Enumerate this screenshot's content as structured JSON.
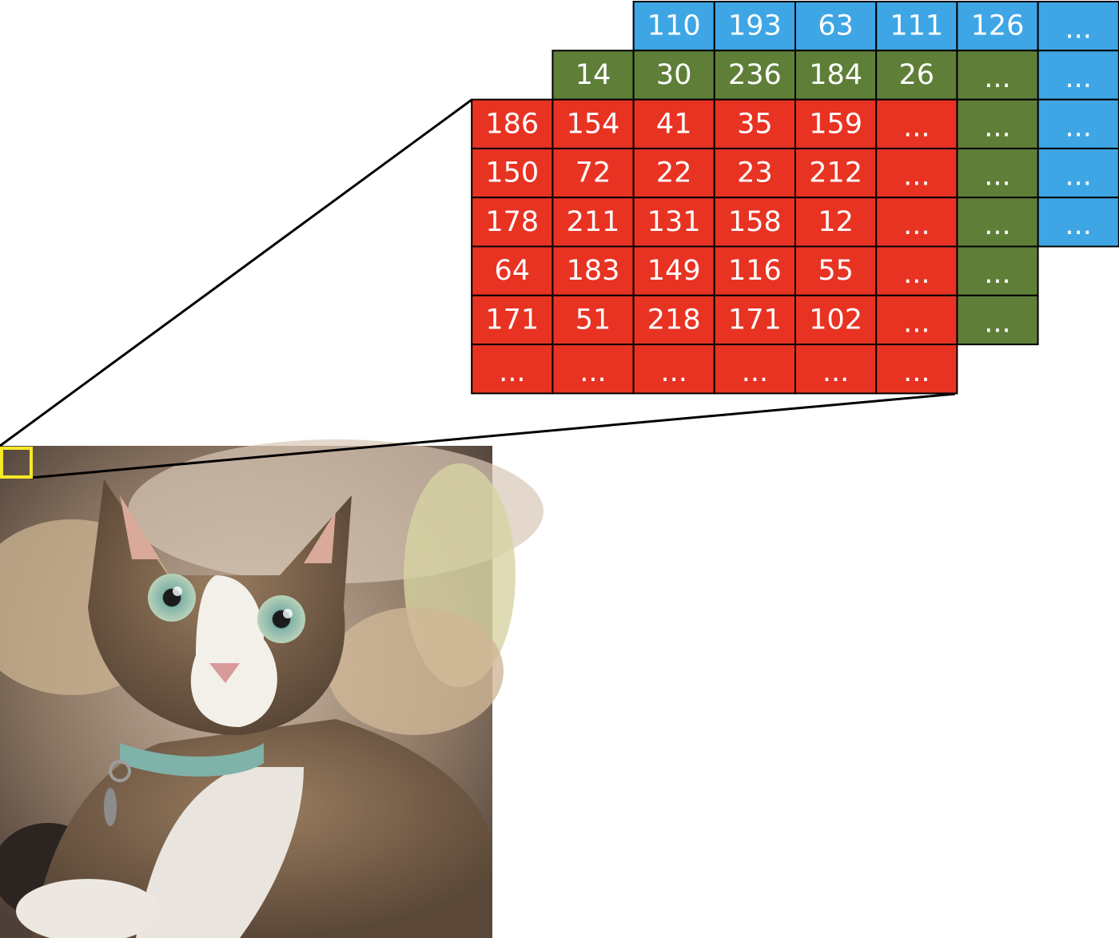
{
  "colors": {
    "red_channel": "#E83323",
    "green_channel": "#5F7F39",
    "blue_channel": "#3FA6E5",
    "highlight_box": "#F5E829",
    "cell_text": "#FFFFFF",
    "connector": "#000000"
  },
  "image": {
    "subject": "tabby cat with blue collar, photo",
    "highlight": "small yellow square in top-left corner of photo"
  },
  "channels": {
    "blue": {
      "rows": [
        [
          "110",
          "193",
          "63",
          "111",
          "126",
          "..."
        ],
        [
          "...",
          "...",
          "...",
          "...",
          "...",
          "..."
        ],
        [
          "...",
          "...",
          "...",
          "...",
          "...",
          "..."
        ],
        [
          "...",
          "...",
          "...",
          "...",
          "...",
          "..."
        ],
        [
          "...",
          "...",
          "...",
          "...",
          "...",
          "..."
        ]
      ]
    },
    "green": {
      "rows": [
        [
          "14",
          "30",
          "236",
          "184",
          "26",
          "..."
        ],
        [
          "...",
          "...",
          "...",
          "...",
          "...",
          "..."
        ],
        [
          "...",
          "...",
          "...",
          "...",
          "...",
          "..."
        ],
        [
          "...",
          "...",
          "...",
          "...",
          "...",
          "..."
        ],
        [
          "...",
          "...",
          "...",
          "...",
          "...",
          "..."
        ],
        [
          "...",
          "...",
          "...",
          "...",
          "...",
          "..."
        ]
      ]
    },
    "red": {
      "rows": [
        [
          "186",
          "154",
          "41",
          "35",
          "159",
          "..."
        ],
        [
          "150",
          "72",
          "22",
          "23",
          "212",
          "..."
        ],
        [
          "178",
          "211",
          "131",
          "158",
          "12",
          "..."
        ],
        [
          "64",
          "183",
          "149",
          "116",
          "55",
          "..."
        ],
        [
          "171",
          "51",
          "218",
          "171",
          "102",
          "..."
        ],
        [
          "...",
          "...",
          "...",
          "...",
          "...",
          "..."
        ]
      ]
    }
  }
}
